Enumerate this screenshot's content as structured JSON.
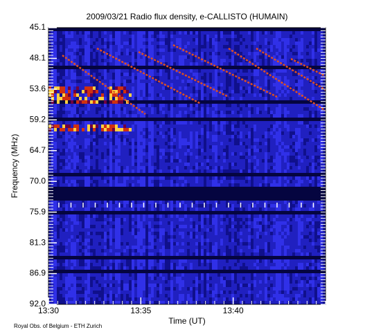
{
  "chart_data": {
    "type": "spectrogram",
    "title": "2009/03/21  Radio flux density, e-CALLISTO (HUMAIN)",
    "x_label": "Time (UT)",
    "y_label": "Frequency (MHz)",
    "footer": "Royal Obs. of Belgium - ETH Zurich",
    "xlim": [
      810,
      825
    ],
    "xticks": [
      {
        "value": 810,
        "label": "13:30"
      },
      {
        "value": 815,
        "label": "13:35"
      },
      {
        "value": 820,
        "label": "13:40"
      }
    ],
    "ylim": [
      45.1,
      92.0
    ],
    "yticks": [
      45.1,
      48.1,
      53.6,
      59.2,
      64.7,
      {
        "value": 70.0,
        "label": "70.0"
      },
      75.9,
      81.3,
      86.9,
      {
        "value": 92.0,
        "label": "92.0"
      }
    ]
  }
}
